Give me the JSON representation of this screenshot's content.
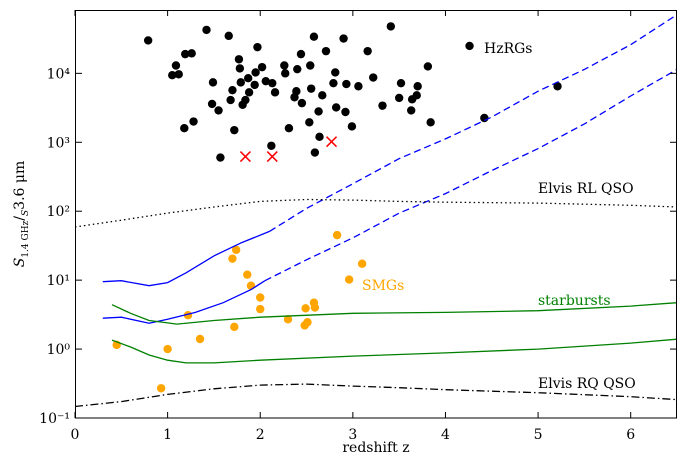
{
  "chart_data": {
    "type": "scatter",
    "xlabel": "redshift z",
    "ylabel": [
      "S",
      "1.4 GHz",
      "/",
      "S",
      "3.6 μm"
    ],
    "xlim": [
      0,
      6.5
    ],
    "xticks": [
      0,
      1,
      2,
      3,
      4,
      5,
      6
    ],
    "ylim": [
      0.1,
      83000
    ],
    "log_y": true,
    "yticks": [
      {
        "value": 0.1,
        "label": "10⁻¹"
      },
      {
        "value": 1,
        "label": "10⁰"
      },
      {
        "value": 10,
        "label": "10¹"
      },
      {
        "value": 100,
        "label": "10²"
      },
      {
        "value": 1000,
        "label": "10³"
      },
      {
        "value": 10000,
        "label": "10⁴"
      }
    ],
    "annotations": [
      {
        "text": "HzRGs",
        "color": "#000000"
      },
      {
        "text": "SMGs",
        "color": "#ffa500"
      },
      {
        "text": "starbursts",
        "color": "#008000"
      },
      {
        "text": "Elvis RL QSO",
        "color": "#000000"
      },
      {
        "text": "Elvis RQ QSO",
        "color": "#000000"
      }
    ],
    "series": [
      {
        "type": "scatter",
        "marker": "o",
        "color": "#000000",
        "x": [
          1.42,
          3.41,
          0.79,
          1.66,
          2.58,
          2.9,
          1.97,
          2.71,
          1.19,
          1.26,
          2.44,
          3.16,
          1.09,
          1.77,
          2.26,
          2.4,
          2.54,
          2.02,
          1.78,
          1.05,
          1.12,
          1.95,
          2.27,
          1.87,
          2.13,
          2.81,
          3.22,
          3.81,
          2.79,
          2.93,
          1.49,
          1.79,
          2.06,
          1.94,
          3.52,
          3.06,
          1.7,
          2.39,
          2.55,
          3.7,
          1.88,
          2.16,
          2.37,
          2.67,
          1.48,
          1.68,
          1.84,
          3.5,
          3.64,
          3.69,
          1.81,
          1.55,
          2.45,
          2.82,
          3.32,
          3.63,
          1.28,
          2.63,
          2.92,
          1.18,
          1.72,
          2.53,
          2.99,
          3.84,
          4.42,
          2.31,
          2.64,
          2.12,
          1.57,
          2.59,
          5.21,
          4.26
        ],
        "values": [
          42700,
          48000,
          30000,
          35000,
          34000,
          32000,
          24000,
          21000,
          19000,
          19500,
          19000,
          21000,
          13000,
          16000,
          13000,
          11500,
          13000,
          12300,
          11800,
          9400,
          9700,
          10300,
          10000,
          8500,
          7200,
          10300,
          8700,
          12600,
          7200,
          7000,
          7400,
          7400,
          7700,
          6800,
          7200,
          6500,
          5700,
          5500,
          6000,
          6500,
          5300,
          5300,
          4500,
          4800,
          3600,
          4100,
          4100,
          4400,
          4200,
          4800,
          3500,
          2900,
          3700,
          3200,
          3400,
          2900,
          2000,
          2800,
          2750,
          1600,
          1500,
          1950,
          1700,
          1950,
          2250,
          1600,
          1200,
          890,
          600,
          710,
          6500,
          25000
        ]
      },
      {
        "type": "scatter",
        "marker": "x",
        "color": "#ff0000",
        "x": [
          1.84,
          2.13,
          2.77
        ],
        "values": [
          620,
          620,
          1020
        ]
      },
      {
        "type": "scatter",
        "marker": "o",
        "color": "#ffa500",
        "x": [
          1.74,
          1.7,
          1.86,
          2.83,
          3.1,
          2.96,
          1.9,
          2.0,
          2.0,
          2.49,
          2.58,
          2.59,
          1.22,
          2.3,
          2.51,
          2.48,
          1.72,
          1.35,
          0.45,
          1.0,
          0.93
        ],
        "values": [
          27.5,
          20.5,
          12,
          45,
          17.3,
          10.2,
          8.3,
          5.6,
          3.8,
          3.9,
          4.7,
          4.0,
          3.1,
          2.7,
          2.45,
          2.2,
          2.1,
          1.4,
          1.15,
          1.0,
          0.27
        ]
      },
      {
        "type": "line",
        "style": "solid",
        "color": "#0000ff",
        "x": [
          0.3,
          0.5,
          0.8,
          1.0,
          1.2,
          1.5,
          1.8,
          2.1
        ],
        "values": [
          9.5,
          9.8,
          8.3,
          9.2,
          12.8,
          22.5,
          35,
          51
        ]
      },
      {
        "type": "line",
        "style": "dashed",
        "color": "#0000ff",
        "x": [
          2.1,
          2.5,
          3,
          3.5,
          4,
          4.5,
          5,
          5.5,
          6,
          6.5
        ],
        "values": [
          51,
          110,
          250,
          580,
          1120,
          2330,
          5500,
          11400,
          26000,
          71000
        ]
      },
      {
        "type": "line",
        "style": "solid",
        "color": "#0000ff",
        "x": [
          0.3,
          0.5,
          0.8,
          1.0,
          1.3,
          1.6,
          1.9,
          2.05
        ],
        "values": [
          2.8,
          2.9,
          2.37,
          2.7,
          3.4,
          4.7,
          7.3,
          9.8
        ]
      },
      {
        "type": "line",
        "style": "dashed",
        "color": "#0000ff",
        "x": [
          2.05,
          2.5,
          3,
          3.5,
          4,
          4.5,
          5,
          5.5,
          6,
          6.5
        ],
        "values": [
          9.8,
          19.7,
          41,
          94,
          180,
          390,
          810,
          1850,
          4700,
          11400
        ]
      },
      {
        "type": "line",
        "style": "solid",
        "color": "#008000",
        "x": [
          0.4,
          0.6,
          0.8,
          1.0,
          1.1,
          1.5,
          2,
          3,
          4,
          5,
          6,
          6.5
        ],
        "values": [
          4.4,
          3.3,
          2.6,
          2.4,
          2.3,
          2.6,
          2.9,
          3.3,
          3.4,
          3.6,
          4.2,
          4.7
        ]
      },
      {
        "type": "line",
        "style": "solid",
        "color": "#008000",
        "x": [
          0.4,
          0.6,
          0.8,
          1.0,
          1.2,
          1.5,
          2,
          3,
          4,
          5,
          6,
          6.5
        ],
        "values": [
          1.35,
          1.07,
          0.82,
          0.69,
          0.63,
          0.63,
          0.69,
          0.79,
          0.88,
          1.0,
          1.22,
          1.39
        ]
      },
      {
        "type": "line",
        "style": "dotted",
        "color": "#000000",
        "x": [
          0,
          0.5,
          1,
          1.5,
          2,
          2.5,
          3,
          3.5,
          4,
          5,
          6,
          6.5
        ],
        "values": [
          59,
          74,
          94,
          115,
          139,
          148,
          145,
          139,
          135,
          131,
          122,
          115
        ]
      },
      {
        "type": "line",
        "style": "dashdot",
        "color": "#000000",
        "x": [
          0,
          0.5,
          1,
          1.5,
          2,
          2.5,
          3,
          3.5,
          4,
          5,
          6,
          6.5
        ],
        "values": [
          0.147,
          0.173,
          0.22,
          0.265,
          0.3,
          0.31,
          0.29,
          0.275,
          0.257,
          0.233,
          0.204,
          0.185
        ]
      }
    ]
  }
}
